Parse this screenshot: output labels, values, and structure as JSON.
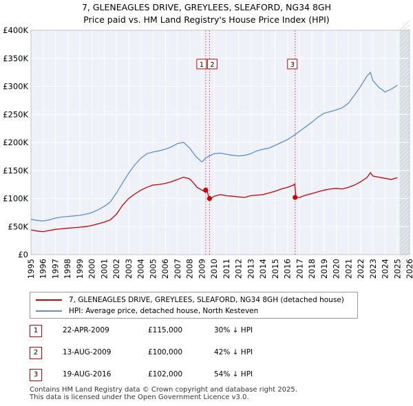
{
  "title_line1": "7, GLENEAGLES DRIVE, GREYLEES, SLEAFORD, NG34 8GH",
  "title_line2": "Price paid vs. HM Land Registry's House Price Index (HPI)",
  "chart_data": {
    "type": "line",
    "title": "7, GLENEAGLES DRIVE, GREYLEES, SLEAFORD, NG34 8GH",
    "subtitle": "Price paid vs. HM Land Registry's House Price Index (HPI)",
    "xlabel": "",
    "ylabel": "",
    "xlim": [
      1995,
      2026
    ],
    "ylim": [
      0,
      400000
    ],
    "x_ticks": [
      1995,
      1996,
      1997,
      1998,
      1999,
      2000,
      2001,
      2002,
      2003,
      2004,
      2005,
      2006,
      2007,
      2008,
      2009,
      2010,
      2011,
      2012,
      2013,
      2014,
      2015,
      2016,
      2017,
      2018,
      2019,
      2020,
      2021,
      2022,
      2023,
      2024,
      2025,
      2026
    ],
    "y_ticks": [
      {
        "value": 0,
        "label": "£0"
      },
      {
        "value": 50000,
        "label": "£50K"
      },
      {
        "value": 100000,
        "label": "£100K"
      },
      {
        "value": 150000,
        "label": "£150K"
      },
      {
        "value": 200000,
        "label": "£200K"
      },
      {
        "value": 250000,
        "label": "£250K"
      },
      {
        "value": 300000,
        "label": "£300K"
      },
      {
        "value": 350000,
        "label": "£350K"
      },
      {
        "value": 400000,
        "label": "£400K"
      }
    ],
    "grid": true,
    "series": [
      {
        "name": "7, GLENEAGLES DRIVE, GREYLEES, SLEAFORD, NG34 8GH (detached house)",
        "color": "#cc0000",
        "x": [
          1995.0,
          1995.5,
          1996.0,
          1996.5,
          1997.0,
          1997.5,
          1998.0,
          1998.5,
          1999.0,
          1999.5,
          2000.0,
          2000.5,
          2001.0,
          2001.5,
          2002.0,
          2002.5,
          2003.0,
          2003.5,
          2004.0,
          2004.5,
          2005.0,
          2005.5,
          2006.0,
          2006.5,
          2007.0,
          2007.5,
          2008.0,
          2008.3,
          2008.6,
          2009.0,
          2009.3,
          2009.4,
          2009.6,
          2009.7,
          2010.0,
          2010.5,
          2011.0,
          2011.5,
          2012.0,
          2012.5,
          2013.0,
          2013.5,
          2014.0,
          2014.5,
          2015.0,
          2015.5,
          2016.0,
          2016.5,
          2016.6,
          2016.7,
          2017.0,
          2017.5,
          2018.0,
          2018.5,
          2019.0,
          2019.5,
          2020.0,
          2020.5,
          2021.0,
          2021.5,
          2022.0,
          2022.5,
          2022.8,
          2023.0,
          2023.5,
          2024.0,
          2024.5,
          2025.0
        ],
        "y": [
          44000,
          42000,
          41000,
          43000,
          45000,
          46000,
          47000,
          48000,
          49000,
          50000,
          52000,
          55000,
          58000,
          62000,
          72000,
          88000,
          100000,
          108000,
          115000,
          120000,
          124000,
          125000,
          127000,
          130000,
          134000,
          138000,
          135000,
          128000,
          120000,
          115000,
          111000,
          115000,
          100000,
          100000,
          104000,
          107000,
          105000,
          104000,
          103000,
          102000,
          105000,
          106000,
          107000,
          110000,
          113000,
          117000,
          120000,
          124000,
          126000,
          102000,
          102000,
          106000,
          109000,
          112000,
          115000,
          117000,
          118000,
          117000,
          120000,
          124000,
          130000,
          137000,
          146000,
          140000,
          138000,
          136000,
          134000,
          137000
        ]
      },
      {
        "name": "HPI: Average price, detached house, North Kesteven",
        "color": "#5b8fd4",
        "x": [
          1995.0,
          1995.5,
          1996.0,
          1996.5,
          1997.0,
          1997.5,
          1998.0,
          1998.5,
          1999.0,
          1999.5,
          2000.0,
          2000.5,
          2001.0,
          2001.5,
          2002.0,
          2002.5,
          2003.0,
          2003.5,
          2004.0,
          2004.5,
          2005.0,
          2005.5,
          2006.0,
          2006.5,
          2007.0,
          2007.5,
          2008.0,
          2008.5,
          2009.0,
          2009.3,
          2009.6,
          2010.0,
          2010.5,
          2011.0,
          2011.5,
          2012.0,
          2012.5,
          2013.0,
          2013.5,
          2014.0,
          2014.5,
          2015.0,
          2015.5,
          2016.0,
          2016.5,
          2017.0,
          2017.5,
          2018.0,
          2018.5,
          2019.0,
          2019.5,
          2020.0,
          2020.5,
          2021.0,
          2021.5,
          2022.0,
          2022.5,
          2022.8,
          2023.0,
          2023.5,
          2024.0,
          2024.5,
          2025.0
        ],
        "y": [
          63000,
          61000,
          60000,
          62000,
          65000,
          67000,
          68000,
          69000,
          70000,
          72000,
          75000,
          80000,
          86000,
          94000,
          110000,
          128000,
          145000,
          160000,
          172000,
          180000,
          183000,
          185000,
          188000,
          192000,
          198000,
          200000,
          190000,
          175000,
          165000,
          172000,
          176000,
          180000,
          181000,
          179000,
          177000,
          176000,
          177000,
          180000,
          185000,
          188000,
          190000,
          195000,
          200000,
          205000,
          212000,
          220000,
          228000,
          236000,
          245000,
          252000,
          255000,
          258000,
          262000,
          270000,
          285000,
          300000,
          318000,
          325000,
          310000,
          298000,
          290000,
          295000,
          302000
        ]
      }
    ],
    "vlines": [
      {
        "x": 2009.31,
        "label": "1"
      },
      {
        "x": 2009.62,
        "label": "2"
      },
      {
        "x": 2016.63,
        "label": "3"
      }
    ],
    "markers": [
      {
        "x": 2009.31,
        "y": 115000
      },
      {
        "x": 2009.62,
        "y": 100000
      },
      {
        "x": 2016.63,
        "y": 102000
      }
    ],
    "shaded_from": 2025.2
  },
  "legend": {
    "property_label": "7, GLENEAGLES DRIVE, GREYLEES, SLEAFORD, NG34 8GH (detached house)",
    "hpi_label": "HPI: Average price, detached house, North Kesteven",
    "property_color": "#cc0000",
    "hpi_color": "#5b8fd4"
  },
  "sales": [
    {
      "num": "1",
      "date": "22-APR-2009",
      "price": "£115,000",
      "hpi": "30% ↓ HPI"
    },
    {
      "num": "2",
      "date": "13-AUG-2009",
      "price": "£100,000",
      "hpi": "42% ↓ HPI"
    },
    {
      "num": "3",
      "date": "19-AUG-2016",
      "price": "£102,000",
      "hpi": "54% ↓ HPI"
    }
  ],
  "footer_line1": "Contains HM Land Registry data © Crown copyright and database right 2025.",
  "footer_line2": "This data is licensed under the Open Government Licence v3.0."
}
